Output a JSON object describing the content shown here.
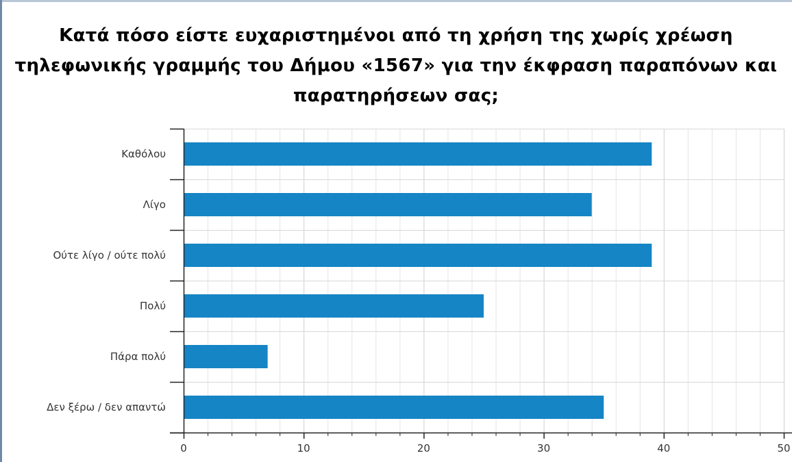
{
  "chart_data": {
    "type": "bar",
    "orientation": "horizontal",
    "title": "Κατά πόσο είστε ευχαριστημένοι από τη χρήση της χωρίς χρέωση τηλεφωνικής γραμμής του Δήμου «1567» για την έκφραση παραπόνων και παρατηρήσεων σας;",
    "categories": [
      "Καθόλου",
      "Λίγο",
      "Ούτε λίγο / ούτε πολύ",
      "Πολύ",
      "Πάρα πολύ",
      "Δεν ξέρω / δεν απαντώ"
    ],
    "values": [
      39,
      34,
      39,
      25,
      7,
      35
    ],
    "xlim": [
      0,
      50
    ],
    "xticks": [
      0,
      10,
      20,
      30,
      40,
      50
    ],
    "grid": true,
    "bar_color": "#1585c5",
    "grid_color": "#dddddd",
    "axis_color": "#222222"
  }
}
